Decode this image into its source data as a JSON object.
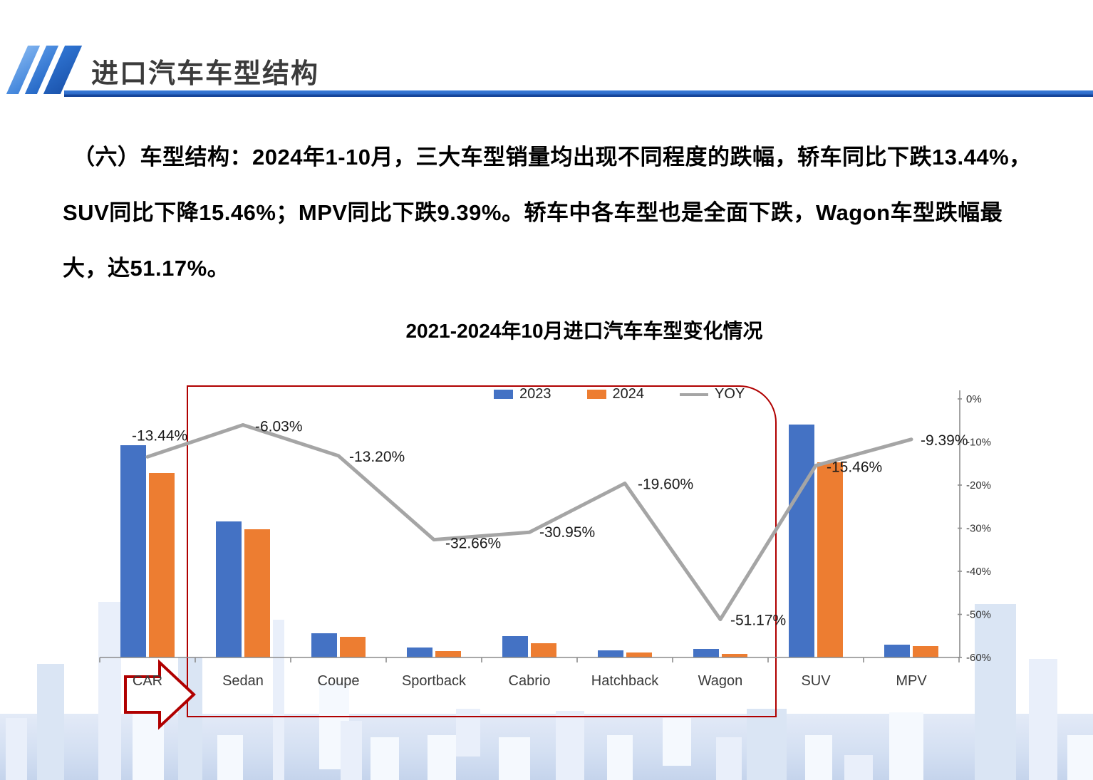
{
  "header": {
    "title": "进口汽车车型结构"
  },
  "body_text": {
    "lines": [
      "（六）车型结构：2024年1-10月，三大车型销量均出现不同程度的跌幅，轿车同比下跌13.44%，",
      "SUV同比下降15.46%；MPV同比下跌9.39%。轿车中各车型也是全面下跌，Wagon车型跌幅最",
      "大，达51.17%。"
    ]
  },
  "chart_data": {
    "type": "bar+line combo",
    "title": "2021-2024年10月进口汽车车型变化情况",
    "categories": [
      "CAR",
      "Sedan",
      "Coupe",
      "Sportback",
      "Cabrio",
      "Hatchback",
      "Wagon",
      "SUV",
      "MPV"
    ],
    "series": [
      {
        "name": "2023",
        "type": "bar",
        "color": "#4472C4",
        "note": "primary value axis is not shown in the chart; values are approximate plotted bar heights in px",
        "values": [
          298,
          191,
          34,
          14,
          30,
          10,
          12,
          327,
          18
        ]
      },
      {
        "name": "2024",
        "type": "bar",
        "color": "#ED7D31",
        "note": "primary value axis is not shown in the chart; values are approximate plotted bar heights in px",
        "values": [
          259,
          180,
          29,
          9,
          20,
          7,
          5,
          274,
          16
        ]
      },
      {
        "name": "YOY",
        "type": "line",
        "color": "#A5A5A5",
        "axis": "secondary",
        "values_percent": [
          -13.44,
          -6.03,
          -13.2,
          -32.66,
          -30.95,
          -19.6,
          -51.17,
          -15.46,
          -9.39
        ],
        "point_labels": [
          "-13.44%",
          "-6.03%",
          "-13.20%",
          "-32.66%",
          "-30.95%",
          "-19.60%",
          "-51.17%",
          "-15.46%",
          "-9.39%"
        ]
      }
    ],
    "secondary_axis": {
      "position": "right",
      "max": 0,
      "min": -60,
      "step": 10,
      "suffix": "%",
      "tick_labels": [
        "0%",
        "-10%",
        "-20%",
        "-30%",
        "-40%",
        "-50%",
        "-60%"
      ]
    },
    "legend": [
      {
        "label": "2023",
        "color": "#4472C4",
        "swatch": "rect"
      },
      {
        "label": "2024",
        "color": "#ED7D31",
        "swatch": "rect"
      },
      {
        "label": "YOY",
        "color": "#A5A5A5",
        "swatch": "line"
      }
    ],
    "grid": false,
    "legend_position": "top-center",
    "annotations": {
      "highlight_box": {
        "from_category": "Sedan",
        "to_category": "Wagon",
        "color": "#B00000"
      },
      "arrow": {
        "points_at": "CAR",
        "direction": "right",
        "color": "#B00000"
      }
    }
  },
  "colors": {
    "accent_blue": "#2D6BC8",
    "bar_2023": "#4472C4",
    "bar_2024": "#ED7D31",
    "yoy_line": "#A5A5A5",
    "highlight_red": "#B00000"
  }
}
